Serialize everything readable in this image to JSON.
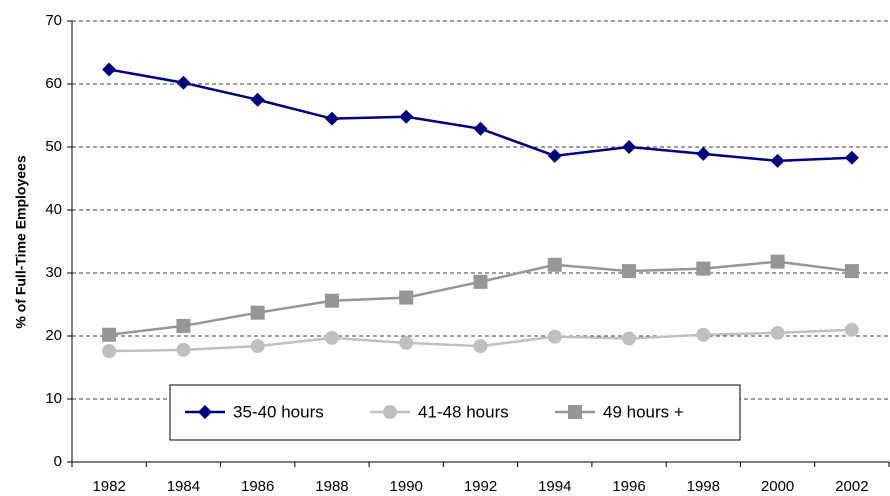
{
  "chart_data": {
    "type": "line",
    "y_label": "% of Full-Time Employees",
    "categories": [
      "1982",
      "1984",
      "1986",
      "1988",
      "1990",
      "1992",
      "1994",
      "1996",
      "1998",
      "2000",
      "2002"
    ],
    "series": [
      {
        "name": "35-40 hours",
        "color": "#000080",
        "marker": "diamond",
        "values": [
          62.3,
          60.2,
          57.5,
          54.5,
          54.8,
          52.9,
          48.6,
          50.0,
          48.9,
          47.8,
          48.3
        ]
      },
      {
        "name": "41-48 hours",
        "color": "#c0c0c0",
        "marker": "circle",
        "values": [
          17.6,
          17.8,
          18.4,
          19.7,
          18.9,
          18.4,
          19.9,
          19.6,
          20.2,
          20.5,
          21.0
        ]
      },
      {
        "name": "49 hours +",
        "color": "#969696",
        "marker": "square",
        "values": [
          20.2,
          21.6,
          23.7,
          25.6,
          26.1,
          28.6,
          31.3,
          30.3,
          30.7,
          31.8,
          30.3
        ]
      }
    ],
    "ylim": [
      0,
      70
    ],
    "yticks": [
      0,
      10,
      20,
      30,
      40,
      50,
      60,
      70
    ],
    "grid": true
  }
}
